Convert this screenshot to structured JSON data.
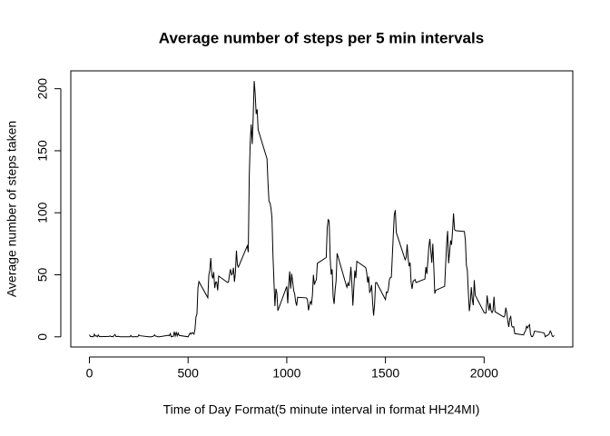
{
  "chart_data": {
    "type": "line",
    "title": "Average number of steps per 5 min intervals",
    "x_label": "Time of Day Format(5 minute interval in format HH24MI)",
    "y_label": "Average number of steps taken",
    "x": [
      0,
      5,
      10,
      15,
      20,
      25,
      30,
      35,
      40,
      45,
      50,
      55,
      100,
      105,
      110,
      115,
      120,
      125,
      130,
      135,
      140,
      145,
      150,
      155,
      200,
      205,
      210,
      215,
      220,
      225,
      230,
      235,
      240,
      245,
      250,
      255,
      300,
      305,
      310,
      315,
      320,
      325,
      330,
      335,
      340,
      345,
      350,
      355,
      400,
      405,
      410,
      415,
      420,
      425,
      430,
      435,
      440,
      445,
      450,
      455,
      500,
      505,
      510,
      515,
      520,
      525,
      530,
      535,
      540,
      545,
      550,
      555,
      600,
      605,
      610,
      615,
      620,
      625,
      630,
      635,
      640,
      645,
      650,
      655,
      700,
      705,
      710,
      715,
      720,
      725,
      730,
      735,
      740,
      745,
      750,
      755,
      800,
      805,
      810,
      815,
      820,
      825,
      830,
      835,
      840,
      845,
      850,
      855,
      900,
      905,
      910,
      915,
      920,
      925,
      930,
      935,
      940,
      945,
      950,
      955,
      1000,
      1005,
      1010,
      1015,
      1020,
      1025,
      1030,
      1035,
      1040,
      1045,
      1050,
      1055,
      1100,
      1105,
      1110,
      1115,
      1120,
      1125,
      1130,
      1135,
      1140,
      1145,
      1150,
      1155,
      1200,
      1205,
      1210,
      1215,
      1220,
      1225,
      1230,
      1235,
      1240,
      1245,
      1250,
      1255,
      1300,
      1305,
      1310,
      1315,
      1320,
      1325,
      1330,
      1335,
      1340,
      1345,
      1350,
      1355,
      1400,
      1405,
      1410,
      1415,
      1420,
      1425,
      1430,
      1435,
      1440,
      1445,
      1450,
      1455,
      1500,
      1505,
      1510,
      1515,
      1520,
      1525,
      1530,
      1535,
      1540,
      1545,
      1550,
      1555,
      1600,
      1605,
      1610,
      1615,
      1620,
      1625,
      1630,
      1635,
      1640,
      1645,
      1650,
      1655,
      1700,
      1705,
      1710,
      1715,
      1720,
      1725,
      1730,
      1735,
      1740,
      1745,
      1750,
      1755,
      1800,
      1805,
      1810,
      1815,
      1820,
      1825,
      1830,
      1835,
      1840,
      1845,
      1850,
      1855,
      1900,
      1905,
      1910,
      1915,
      1920,
      1925,
      1930,
      1935,
      1940,
      1945,
      1950,
      1955,
      2000,
      2005,
      2010,
      2015,
      2020,
      2025,
      2030,
      2035,
      2040,
      2045,
      2050,
      2055,
      2100,
      2105,
      2110,
      2115,
      2120,
      2125,
      2130,
      2135,
      2140,
      2145,
      2150,
      2155,
      2200,
      2205,
      2210,
      2215,
      2220,
      2225,
      2230,
      2235,
      2240,
      2245,
      2250,
      2255,
      2300,
      2305,
      2310,
      2315,
      2320,
      2325,
      2330,
      2335,
      2340,
      2345,
      2350,
      2355
    ],
    "series": [
      {
        "color": "#000000",
        "values": [
          1.7,
          0.3,
          0.1,
          0.2,
          0.1,
          2.1,
          0.5,
          0.9,
          0,
          1.5,
          0.3,
          0.1,
          0.3,
          0.7,
          0.2,
          0.3,
          0,
          1.1,
          1.8,
          0.2,
          0.2,
          0.4,
          0.3,
          0,
          0,
          0,
          1.1,
          0,
          0,
          0.1,
          0,
          0.2,
          0,
          0,
          1.5,
          0.9,
          0,
          0,
          0,
          0,
          0.2,
          0.6,
          1.6,
          0.6,
          0.5,
          0.1,
          0,
          0,
          1.2,
          0.9,
          2.6,
          0,
          0.3,
          0.4,
          4.1,
          0.7,
          3.5,
          0.8,
          3.1,
          1.1,
          0,
          1.6,
          3,
          2.2,
          3.3,
          3,
          2.1,
          6.1,
          16,
          18.3,
          39.5,
          44.5,
          31.5,
          49.3,
          53.8,
          63.5,
          50,
          47.1,
          52.2,
          39.3,
          44,
          44.2,
          37.4,
          49,
          43.8,
          44.4,
          50.5,
          54.5,
          49.9,
          51,
          55.7,
          44.3,
          52.3,
          69.5,
          57.8,
          56.2,
          73.4,
          68.2,
          129.4,
          157.5,
          171.2,
          155.4,
          177.3,
          206.2,
          195.9,
          179.6,
          183.4,
          167,
          143.5,
          124,
          109.1,
          108.1,
          103.7,
          96,
          66.2,
          45.2,
          24.8,
          38.8,
          35,
          21.1,
          40.6,
          27,
          42.4,
          52.7,
          38.9,
          50.8,
          44.3,
          37.4,
          34.7,
          28.3,
          25.1,
          31.9,
          31.4,
          29.7,
          21.3,
          25.5,
          28.4,
          26.5,
          33.4,
          50,
          42,
          44.6,
          46,
          59.2,
          63.9,
          87.7,
          94.8,
          92.8,
          63.4,
          50.2,
          54.5,
          32.4,
          26.5,
          37.7,
          45.1,
          67.3,
          42.3,
          39.9,
          43.3,
          41,
          46.2,
          56.4,
          42.8,
          25.1,
          40,
          53.5,
          47.3,
          60.8,
          55.8,
          52,
          43.6,
          48.7,
          35.5,
          37.5,
          41.8,
          27.5,
          17.1,
          26.1,
          43.6,
          43.8,
          30,
          36.1,
          35.5,
          38.8,
          46,
          47.8,
          48.1,
          65.3,
          82.9,
          98.7,
          102.1,
          84,
          62.1,
          64.1,
          74.5,
          63.2,
          56.9,
          59.8,
          43.9,
          38.6,
          44.7,
          45.5,
          46.2,
          43.7,
          46.6,
          56.3,
          50.7,
          61.2,
          72.7,
          78.9,
          68.9,
          59.7,
          75.1,
          56.5,
          34.8,
          37.5,
          40.7,
          58,
          74.7,
          85.3,
          59.3,
          67.8,
          77.7,
          74.2,
          85.3,
          99.5,
          86.6,
          85.6,
          84.9,
          77.8,
          58,
          53.4,
          36.3,
          20.7,
          27.4,
          40,
          30.2,
          25.5,
          45.7,
          33.5,
          19.6,
          19,
          19.3,
          33.3,
          26.8,
          21.2,
          27.3,
          21.3,
          19.5,
          21.3,
          32.3,
          20.2,
          15.9,
          17.2,
          23.5,
          19.2,
          12.5,
          8,
          14.7,
          16.3,
          8.7,
          7.8,
          8.1,
          2.6,
          1.5,
          3.7,
          4.8,
          8.5,
          7.1,
          8.7,
          9.8,
          2.2,
          0.3,
          0.1,
          1.6,
          4.6,
          3.3,
          2.8,
          0,
          0.8,
          1,
          1.6,
          2.6,
          4.7,
          3.3,
          0.6,
          0.2,
          1.1
        ]
      }
    ],
    "xlim": [
      -94.2,
      2449.2
    ],
    "ylim": [
      -8.2,
      214.4
    ],
    "xticks": [
      0,
      500,
      1000,
      1500,
      2000
    ],
    "yticks": [
      0,
      50,
      100,
      150,
      200
    ]
  }
}
